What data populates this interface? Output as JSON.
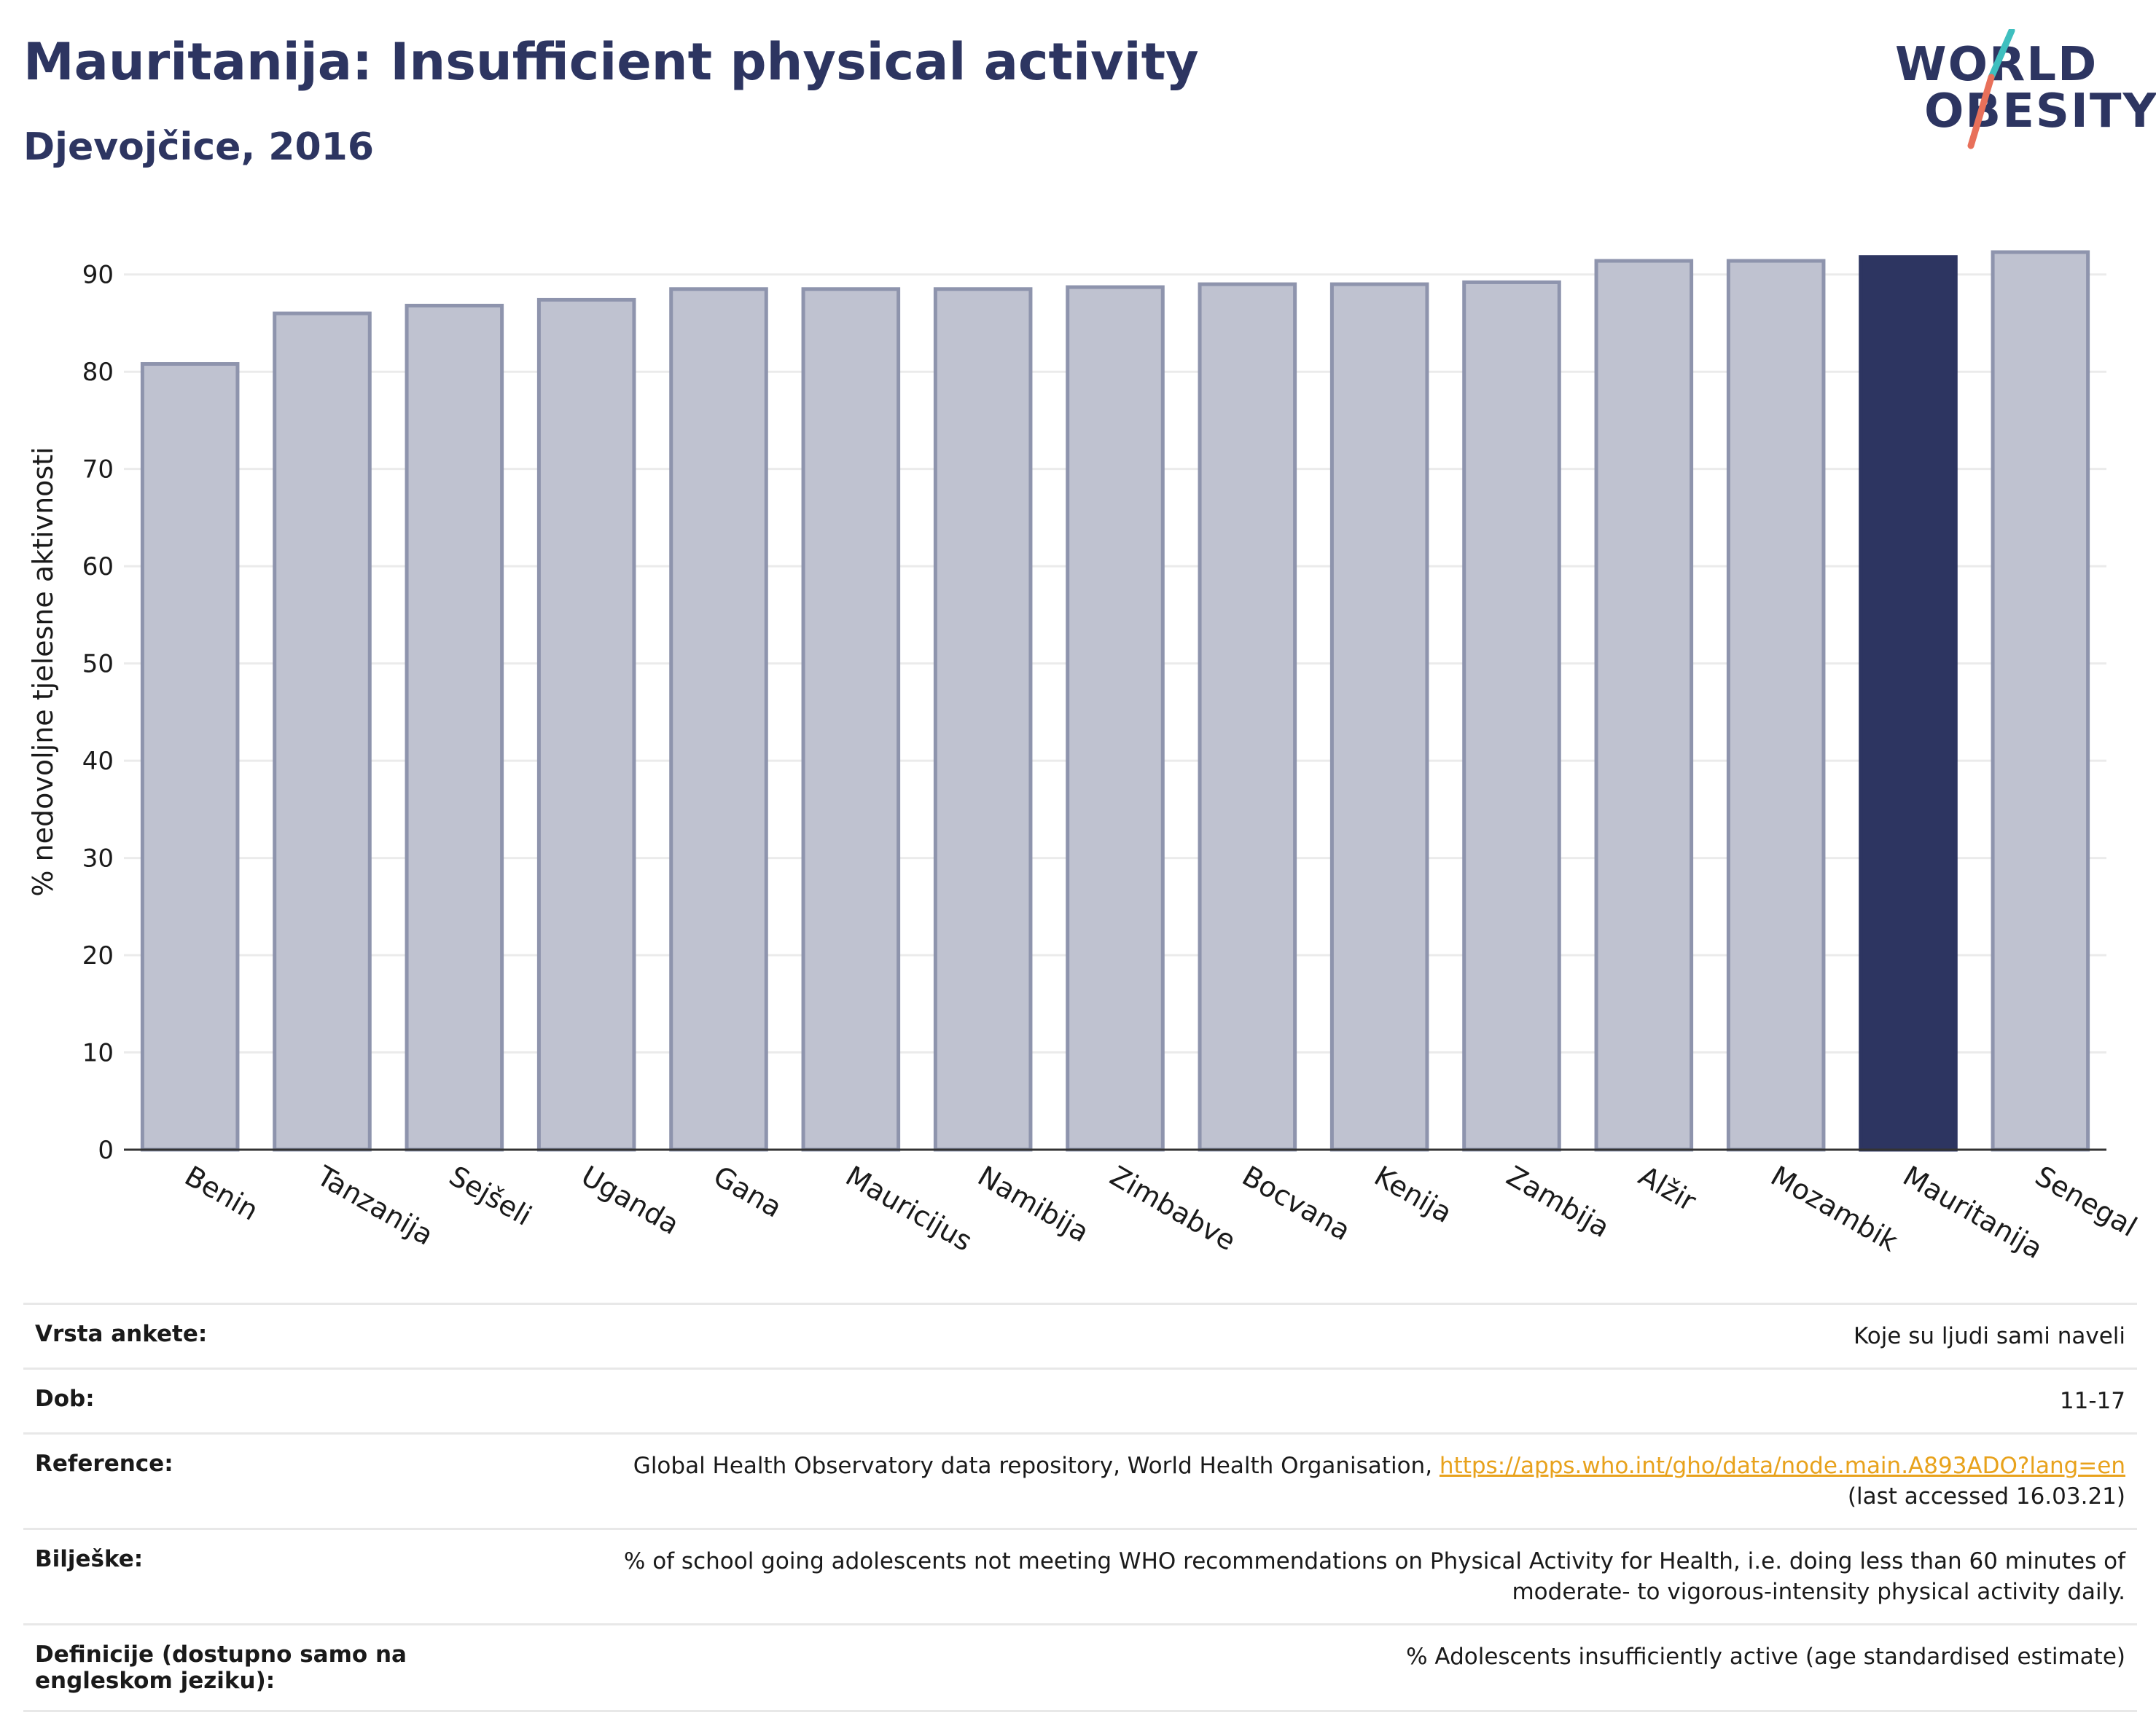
{
  "header": {
    "title": "Mauritanija: Insufficient physical activity",
    "subtitle": "Djevojčice, 2016"
  },
  "logo": {
    "line1": "WORLD",
    "line2": "OBESITY",
    "colors": {
      "navy": "#2d3561",
      "teal": "#3fbfbf",
      "coral": "#e8705a"
    }
  },
  "chart_data": {
    "type": "bar",
    "title": "Mauritanija: Insufficient physical activity",
    "subtitle": "Djevojčice, 2016",
    "xlabel": "",
    "ylabel": "% nedovoljne tjelesne aktivnosti",
    "ylim": [
      0,
      95
    ],
    "yticks": [
      0,
      10,
      20,
      30,
      40,
      50,
      60,
      70,
      80,
      90
    ],
    "grid": true,
    "categories": [
      "Benin",
      "Tanzanija",
      "Sejšeli",
      "Uganda",
      "Gana",
      "Mauricijus",
      "Namibija",
      "Zimbabve",
      "Bocvana",
      "Kenija",
      "Zambija",
      "Alžir",
      "Mozambik",
      "Mauritanija",
      "Senegal"
    ],
    "values": [
      80.8,
      86.0,
      86.8,
      87.4,
      88.5,
      88.5,
      88.5,
      88.7,
      89.0,
      89.0,
      89.2,
      91.4,
      91.4,
      91.8,
      92.3
    ],
    "highlight": "Mauritanija",
    "colors": {
      "default": "#bfc2d0",
      "default_stroke": "#8e94ad",
      "highlight": "#2d3561"
    }
  },
  "meta": {
    "rows": [
      {
        "key": "Vrsta ankete:",
        "value": "Koje su ljudi sami naveli"
      },
      {
        "key": "Dob:",
        "value": "11-17"
      },
      {
        "key": "Reference:",
        "value": "Global Health Observatory data repository, World Health Organisation, ",
        "link": "https://apps.who.int/gho/data/node.main.A893ADO?lang=en",
        "value2": "(last accessed 16.03.21)"
      },
      {
        "key": "Bilješke:",
        "value": "% of school going adolescents not meeting WHO recommendations on Physical Activity for Health, i.e. doing less than 60 minutes of moderate- to vigorous-intensity physical activity daily."
      },
      {
        "key": "Definicije (dostupno samo na engleskom jeziku):",
        "value": "% Adolescents insufficiently active (age standardised estimate)"
      }
    ]
  }
}
